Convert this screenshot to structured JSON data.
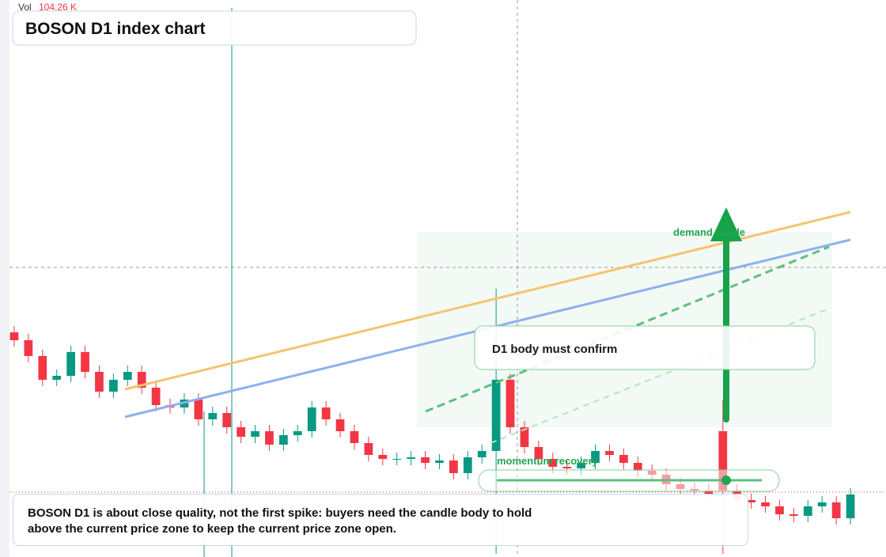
{
  "chart_data": {
    "type": "candlestick",
    "title": "BOSON D1 index chart",
    "volume_label": "Vol",
    "volume_text": "104.26 K",
    "annotations": [
      "demand divide",
      "D1 body must confirm",
      "momentum recovery"
    ],
    "note": "BOSON D1 is about close quality, not the first spike: buyers need the candle body to hold above the current price zone to keep the current price zone open.",
    "up_color": "#089981",
    "down_color": "#f23645",
    "ylim": [
      0,
      704
    ],
    "open": [
      284,
      274,
      254,
      224,
      229,
      259,
      234,
      209,
      224,
      234,
      214,
      192,
      189,
      199,
      174,
      182,
      164,
      152,
      159,
      142,
      154,
      159,
      189,
      174,
      159,
      144,
      129,
      124,
      124,
      126,
      119,
      122,
      106,
      126,
      134,
      224,
      164,
      139,
      124,
      114,
      112,
      119,
      134,
      129,
      119,
      109,
      104,
      92,
      86,
      84,
      159,
      84,
      72,
      69,
      64,
      54,
      52,
      64,
      69,
      49
    ],
    "high": [
      292,
      282,
      262,
      237,
      267,
      267,
      242,
      232,
      242,
      242,
      222,
      200,
      207,
      207,
      190,
      190,
      172,
      167,
      167,
      162,
      167,
      197,
      197,
      182,
      167,
      152,
      137,
      132,
      134,
      134,
      130,
      130,
      134,
      142,
      339,
      232,
      172,
      147,
      132,
      122,
      127,
      142,
      142,
      137,
      127,
      117,
      112,
      100,
      94,
      92,
      199,
      92,
      80,
      77,
      72,
      62,
      72,
      77,
      77,
      87
    ],
    "low": [
      266,
      246,
      216,
      216,
      221,
      226,
      201,
      201,
      216,
      206,
      184,
      181,
      181,
      166,
      166,
      156,
      144,
      144,
      134,
      134,
      146,
      151,
      166,
      151,
      136,
      121,
      116,
      116,
      116,
      111,
      111,
      98,
      98,
      118,
      4,
      156,
      131,
      116,
      106,
      104,
      104,
      111,
      121,
      111,
      101,
      96,
      84,
      78,
      76,
      71,
      4,
      64,
      61,
      56,
      46,
      44,
      44,
      56,
      41,
      41
    ],
    "close": [
      274,
      254,
      224,
      229,
      259,
      234,
      209,
      224,
      234,
      214,
      192,
      189,
      199,
      174,
      182,
      164,
      152,
      159,
      142,
      154,
      159,
      189,
      174,
      159,
      144,
      129,
      124,
      124,
      126,
      119,
      122,
      106,
      126,
      134,
      224,
      164,
      139,
      124,
      114,
      112,
      119,
      134,
      129,
      119,
      109,
      104,
      92,
      86,
      84,
      79,
      84,
      72,
      69,
      64,
      54,
      52,
      64,
      69,
      49,
      79
    ]
  }
}
